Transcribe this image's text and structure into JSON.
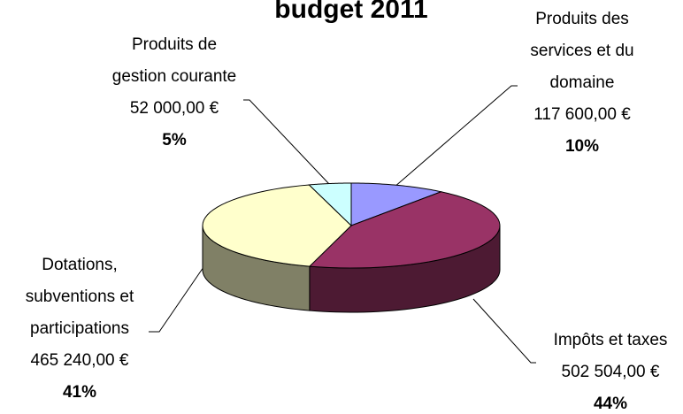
{
  "chart_data": {
    "type": "pie3d",
    "title": "budget 2011",
    "categories": [
      "Produits des\nservices et du\ndomaine",
      "Impôts et taxes",
      "Dotations,\nsubventions et\nparticipations",
      "Produits de\ngestion courante"
    ],
    "values": [
      117600,
      502504,
      465240,
      52000
    ],
    "value_labels": [
      "117 600,00 €",
      "502 504,00 €",
      "465 240,00 €",
      "52 000,00 €"
    ],
    "percents": [
      10,
      44,
      41,
      5
    ],
    "percent_labels": [
      "10%",
      "44%",
      "41%",
      "5%"
    ],
    "colors": [
      "#9999ff",
      "#993366",
      "#ffffcc",
      "#ccffff"
    ]
  }
}
